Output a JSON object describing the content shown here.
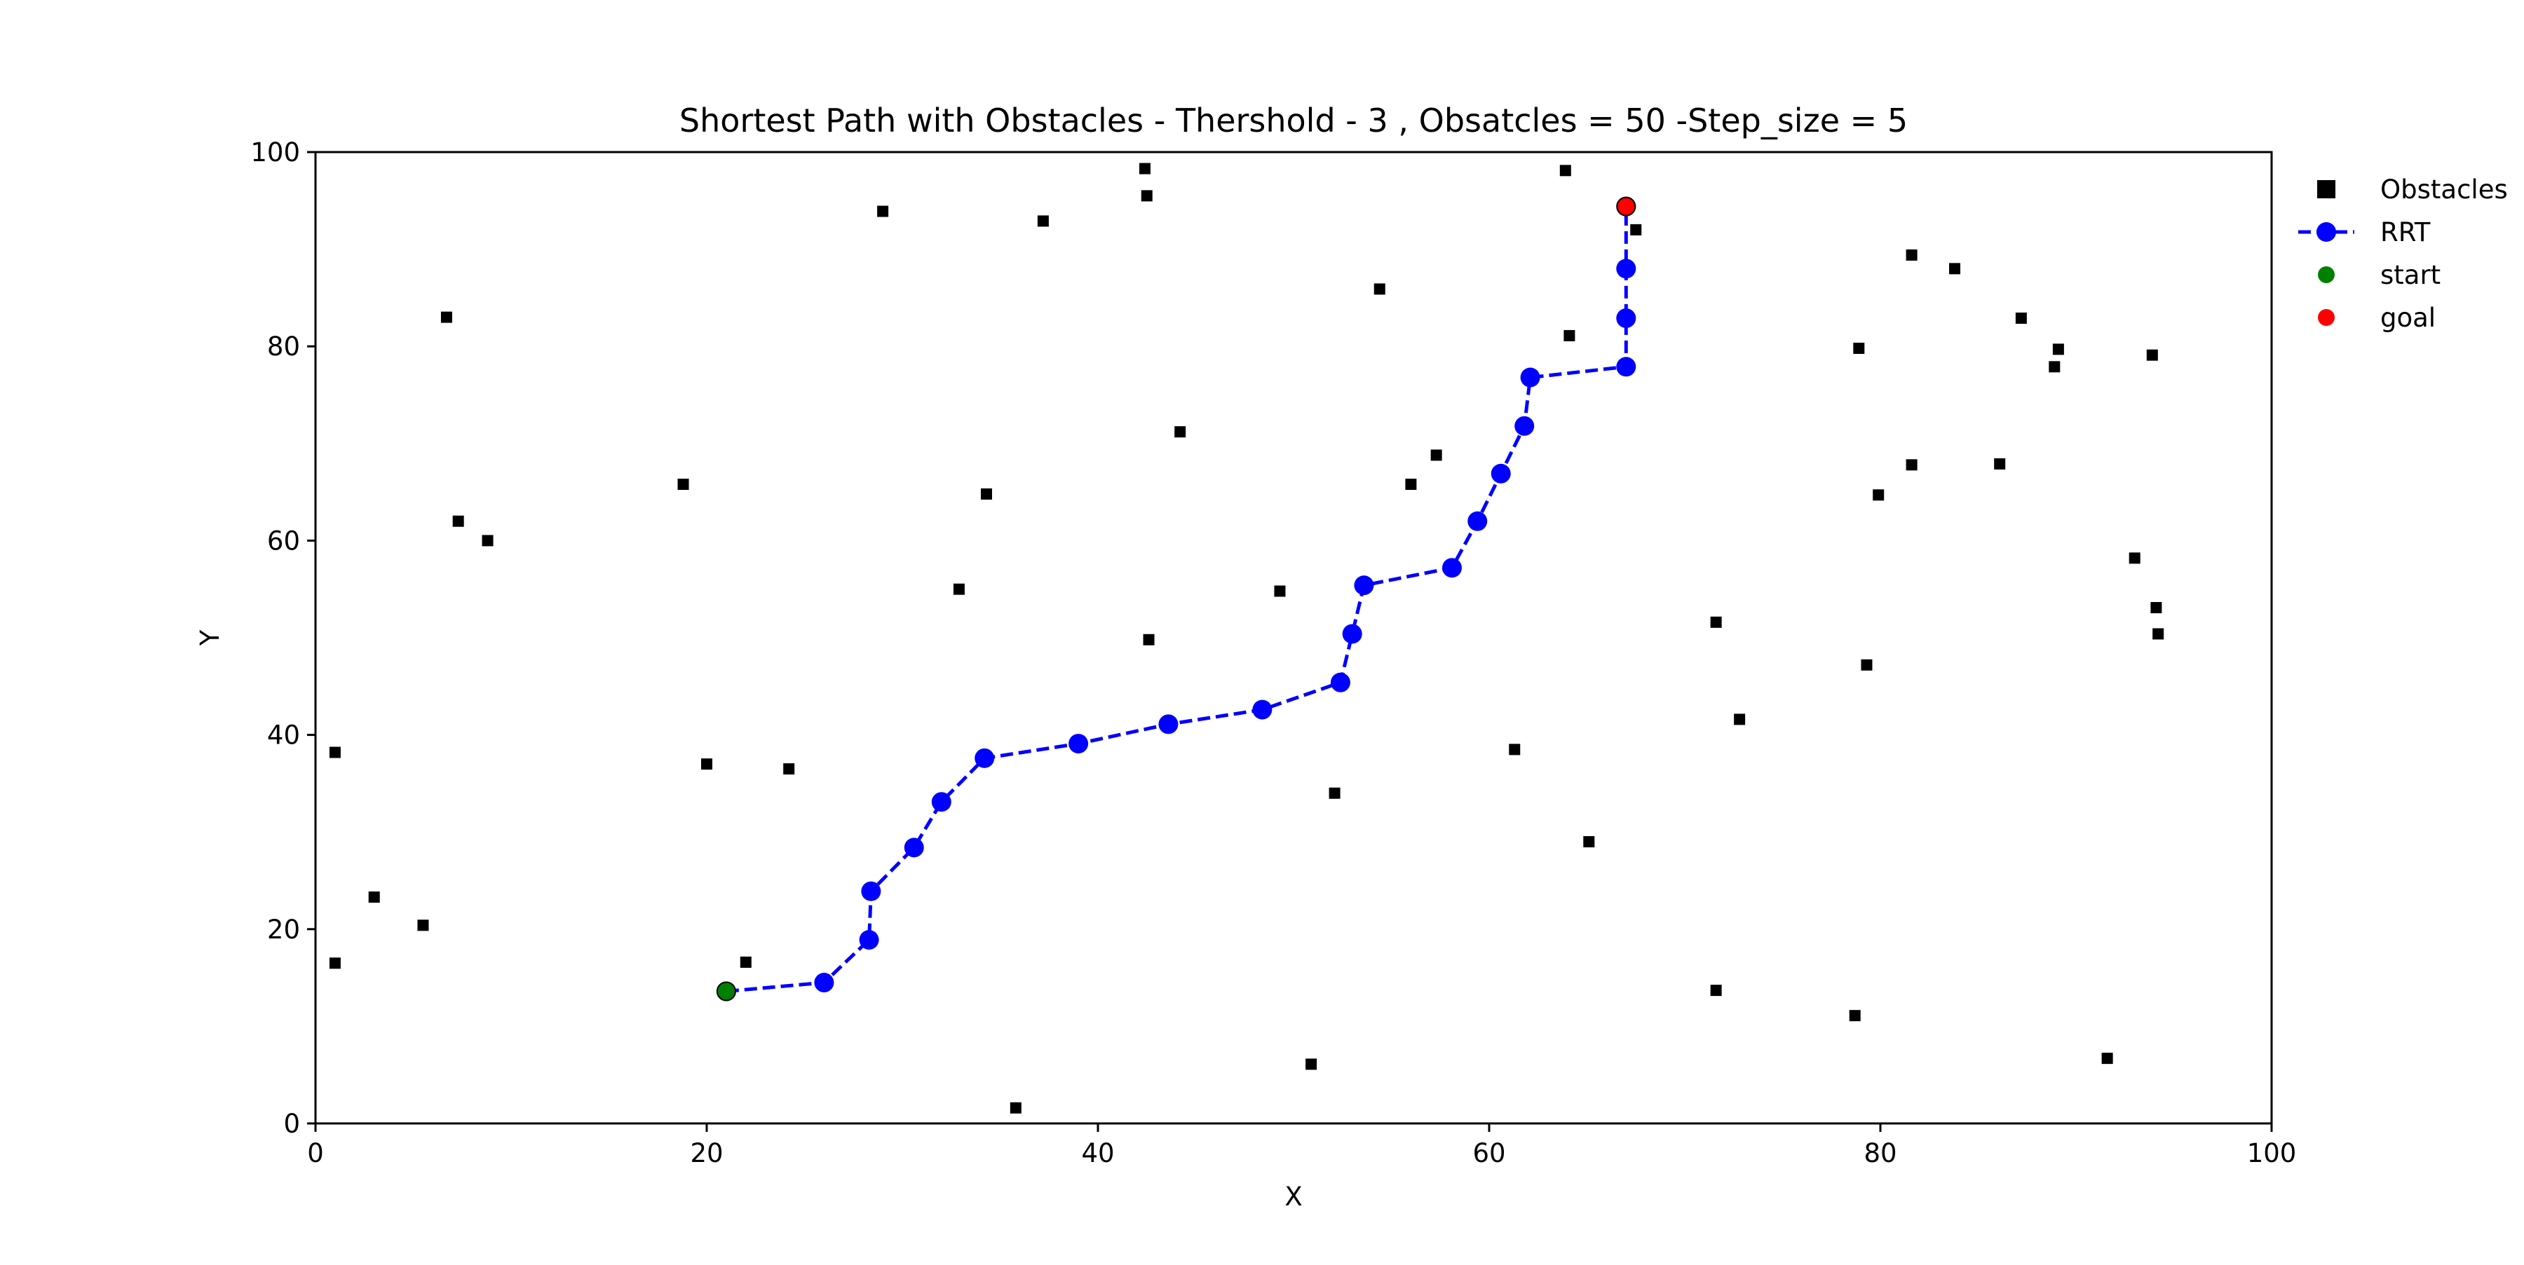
{
  "chart_data": {
    "type": "scatter",
    "title": "Shortest Path with Obstacles - Thershold - 3 , Obsatcles = 50 -Step_size = 5",
    "xlabel": "X",
    "ylabel": "Y",
    "xlim": [
      0,
      100
    ],
    "ylim": [
      0,
      100
    ],
    "xticks": [
      "0",
      "20",
      "40",
      "60",
      "80",
      "100"
    ],
    "yticks": [
      "0",
      "20",
      "40",
      "60",
      "80",
      "100"
    ],
    "grid": false,
    "legend_position": "outside-top-right",
    "legend": [
      {
        "label": "Obstacles",
        "kind": "square",
        "color": "#000000"
      },
      {
        "label": "RRT",
        "kind": "line-marker",
        "color": "#0000ff"
      },
      {
        "label": "start",
        "kind": "dot",
        "color": "#008000"
      },
      {
        "label": "goal",
        "kind": "dot",
        "color": "#ff0000"
      }
    ],
    "series": [
      {
        "name": "Obstacles",
        "color": "#000000",
        "points": [
          [
            1,
            38.2
          ],
          [
            1,
            16.5
          ],
          [
            3,
            23.3
          ],
          [
            5.5,
            20.4
          ],
          [
            6.7,
            83
          ],
          [
            7.3,
            62
          ],
          [
            8.8,
            60
          ],
          [
            18.8,
            65.8
          ],
          [
            20,
            37
          ],
          [
            22,
            16.6
          ],
          [
            24.2,
            36.5
          ],
          [
            29,
            93.9
          ],
          [
            32.9,
            55
          ],
          [
            34.3,
            64.8
          ],
          [
            35.8,
            1.6
          ],
          [
            37.2,
            92.9
          ],
          [
            42.4,
            98.3
          ],
          [
            42.5,
            95.5
          ],
          [
            42.6,
            49.8
          ],
          [
            44.2,
            71.2
          ],
          [
            49.3,
            54.8
          ],
          [
            50.9,
            6.1
          ],
          [
            52.1,
            34
          ],
          [
            54.4,
            85.9
          ],
          [
            56,
            65.8
          ],
          [
            57.3,
            68.8
          ],
          [
            61.3,
            38.5
          ],
          [
            63.9,
            98.1
          ],
          [
            64.1,
            81.1
          ],
          [
            65.1,
            29
          ],
          [
            67.5,
            92
          ],
          [
            71.6,
            51.6
          ],
          [
            71.6,
            13.7
          ],
          [
            72.8,
            41.6
          ],
          [
            78.7,
            11.1
          ],
          [
            78.9,
            79.8
          ],
          [
            79.3,
            47.2
          ],
          [
            79.9,
            64.7
          ],
          [
            81.6,
            89.4
          ],
          [
            81.6,
            67.8
          ],
          [
            83.8,
            88
          ],
          [
            86.1,
            67.9
          ],
          [
            87.2,
            82.9
          ],
          [
            88.9,
            77.9
          ],
          [
            89.1,
            79.7
          ],
          [
            91.6,
            6.7
          ],
          [
            93,
            58.2
          ],
          [
            93.9,
            79.1
          ],
          [
            94.1,
            53.1
          ],
          [
            94.2,
            50.4
          ]
        ]
      },
      {
        "name": "RRT",
        "color": "#0000ff",
        "points": [
          [
            21,
            13.6
          ],
          [
            26,
            14.5
          ],
          [
            28.3,
            18.9
          ],
          [
            28.4,
            23.9
          ],
          [
            30.6,
            28.4
          ],
          [
            32,
            33.1
          ],
          [
            34.2,
            37.6
          ],
          [
            39,
            39.1
          ],
          [
            43.6,
            41.1
          ],
          [
            48.4,
            42.6
          ],
          [
            52.4,
            45.4
          ],
          [
            53,
            50.4
          ],
          [
            53.6,
            55.4
          ],
          [
            58.1,
            57.2
          ],
          [
            59.4,
            62
          ],
          [
            60.6,
            66.9
          ],
          [
            61.8,
            71.8
          ],
          [
            62.1,
            76.8
          ],
          [
            67,
            77.9
          ],
          [
            67,
            82.9
          ],
          [
            67,
            88
          ],
          [
            67,
            94.4
          ]
        ]
      },
      {
        "name": "start",
        "color": "#008000",
        "points": [
          [
            21,
            13.6
          ]
        ]
      },
      {
        "name": "goal",
        "color": "#ff0000",
        "points": [
          [
            67,
            94.4
          ]
        ]
      }
    ]
  }
}
